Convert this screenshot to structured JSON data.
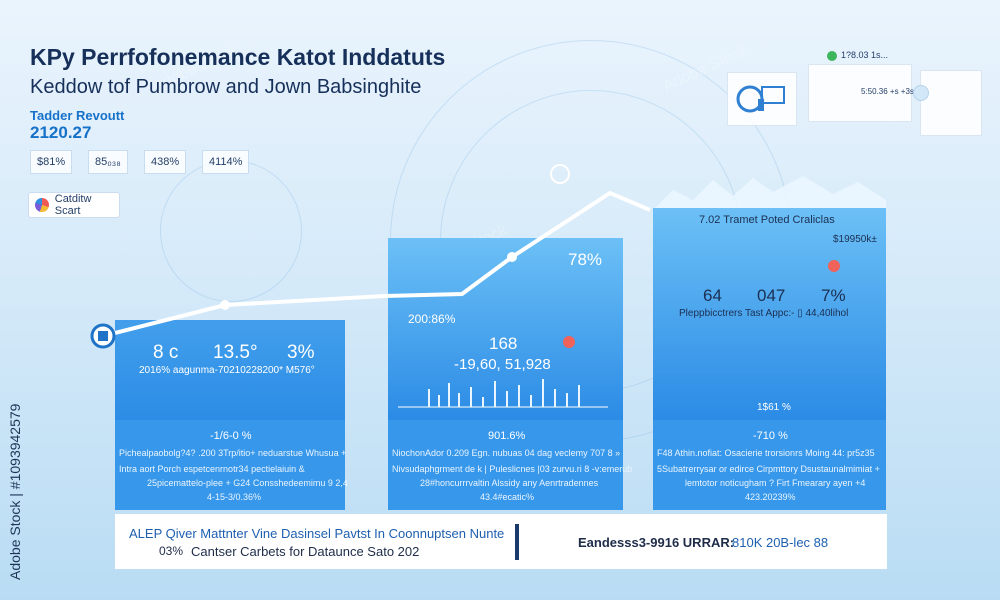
{
  "header": {
    "title": "KPy Perrfofonemance Katot Inddatuts",
    "subtitle": "Keddow tof Pumbrow and Jown Babsinghite"
  },
  "revenue": {
    "label": "Tadder Revoutt",
    "value": "2120.27"
  },
  "kpis": [
    "$81%",
    "85₀₃₈",
    "438%",
    "4114%"
  ],
  "chart_button": {
    "label": "Catditw Scart"
  },
  "top_widget": {
    "label": "1?8.03 1s...",
    "value": "5:50.36 +s +3s"
  },
  "panels": [
    {
      "stat_a": "8 c",
      "stat_b": "13.5°",
      "stat_c": "3%",
      "caption": "2016% aagunma-70210228200*   M576°",
      "lower_title": "-1/6-0 %",
      "lower_lines": [
        "Pichealpaobolg?4? .200 3Trp/itio+ neduarstue Whusua +",
        "Intra aort Porch espetcenrnotr34 pectielaiuin  &",
        "25picemattelo-plee + G24 Consshedeemimu 9 2,4",
        "4-15-3/0.36%"
      ]
    },
    {
      "label_top": "78%",
      "label_left": "200:86%",
      "stat_a": "168",
      "stat_b": "-19,60, 51,928",
      "lower_title": "901.6%",
      "lower_lines": [
        "NiochonAdor  0.209 Egn. nubuas 04 dag veclemy   707 8 »",
        "Nivsudaphgrment de k | Puleslicnes |03 zurvu.ri 8 -v:emerub",
        "28#honcurrrvaltin Alssidy any Aenrtradennes",
        "43.4#ecatic%"
      ]
    },
    {
      "title": "7.02 Tramet Poted Craliclas",
      "value": "$19950k±",
      "stat_a": "64",
      "stat_b": "047",
      "stat_c": "7%",
      "caption": "Pleppbicctrers  Tast Appc:- ▯ 44,40lihol",
      "foot": "1$61 %",
      "lower_title": "-710 %",
      "lower_lines": [
        "F48 Athin.nofiat: Osacierie trorsionrs Moing 44: pr5z35",
        "5Subatrerrysar or edirce Cirpmttory Dsustaunalmimiat +",
        "lemtotor noticugham ? Firt Fmearary ayen +4",
        "423.20239%"
      ]
    }
  ],
  "footer": {
    "line1": "ALEP Qiver Mattnter Vine Dasinsel Pavtst In Coonnuptsen Nunte",
    "percent": "03%",
    "line2": "Cantser Carbets for Dataunce Sato 202",
    "right_label": "Eandesss3-9916 URRAR:",
    "right_value": "810K 20B-lec 88"
  },
  "watermark": {
    "side": "Adobe Stock | #1093942579",
    "repeat": "Adobe Stock"
  },
  "colors": {
    "panel": "#2c8de6",
    "accent": "#1671c9",
    "dark_text": "#16305a",
    "dot": "#f0635a"
  }
}
